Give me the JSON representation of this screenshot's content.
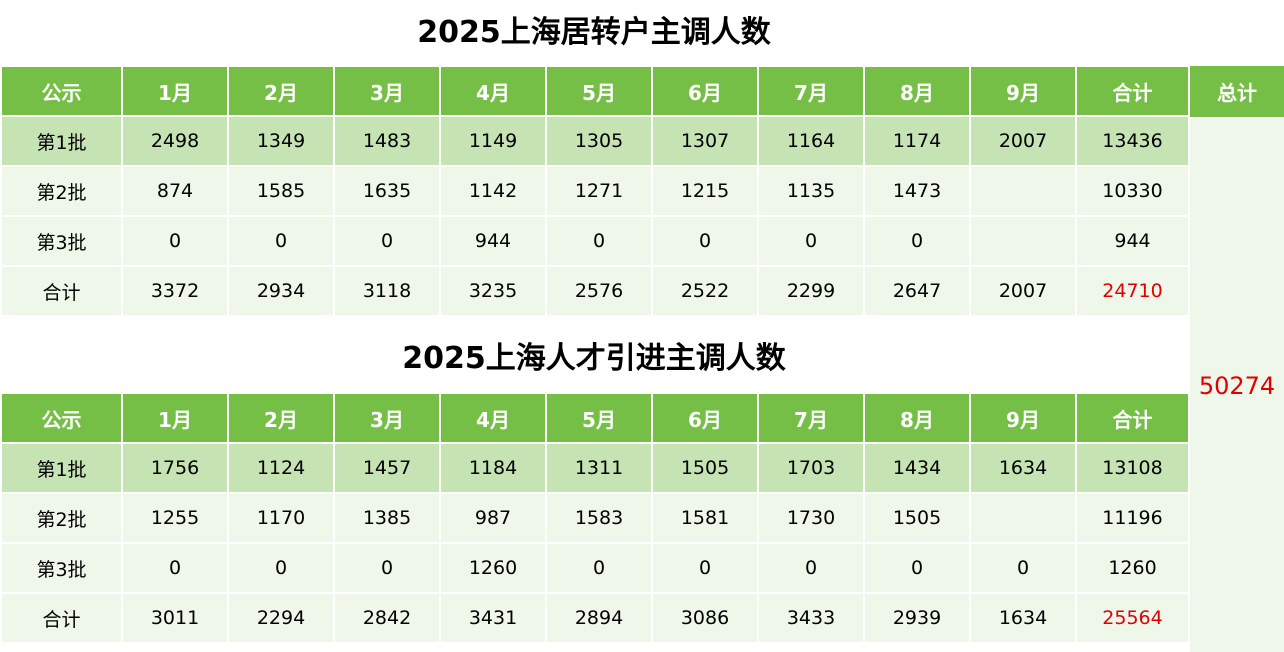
{
  "table1": {
    "title": "2025上海居转户主调人数",
    "headers": [
      "公示",
      "1月",
      "2月",
      "3月",
      "4月",
      "5月",
      "6月",
      "7月",
      "8月",
      "9月",
      "合计"
    ],
    "rows": [
      [
        "第1批",
        "2498",
        "1349",
        "1483",
        "1149",
        "1305",
        "1307",
        "1164",
        "1174",
        "2007",
        "13436"
      ],
      [
        "第2批",
        "874",
        "1585",
        "1635",
        "1142",
        "1271",
        "1215",
        "1135",
        "1473",
        "",
        "10330"
      ],
      [
        "第3批",
        "0",
        "0",
        "0",
        "944",
        "0",
        "0",
        "0",
        "0",
        "",
        "944"
      ],
      [
        "合计",
        "3372",
        "2934",
        "3118",
        "3235",
        "2576",
        "2522",
        "2299",
        "2647",
        "2007",
        "24710"
      ]
    ]
  },
  "table2": {
    "title": "2025上海人才引进主调人数",
    "headers": [
      "公示",
      "1月",
      "2月",
      "3月",
      "4月",
      "5月",
      "6月",
      "7月",
      "8月",
      "9月",
      "合计"
    ],
    "rows": [
      [
        "第1批",
        "1756",
        "1124",
        "1457",
        "1184",
        "1311",
        "1505",
        "1703",
        "1434",
        "1634",
        "13108"
      ],
      [
        "第2批",
        "1255",
        "1170",
        "1385",
        "987",
        "1583",
        "1581",
        "1730",
        "1505",
        "",
        "11196"
      ],
      [
        "第3批",
        "0",
        "0",
        "0",
        "1260",
        "0",
        "0",
        "0",
        "0",
        "0",
        "1260"
      ],
      [
        "合计",
        "3011",
        "2294",
        "2842",
        "3431",
        "2894",
        "3086",
        "3433",
        "2939",
        "1634",
        "25564"
      ]
    ]
  },
  "grand_total": {
    "label": "总计",
    "value": "50274"
  },
  "colors": {
    "header_bg": "#76bf46",
    "row1_bg": "#c6e3b4",
    "row_bg": "#eff7ea",
    "highlight_text": "#e00000"
  }
}
